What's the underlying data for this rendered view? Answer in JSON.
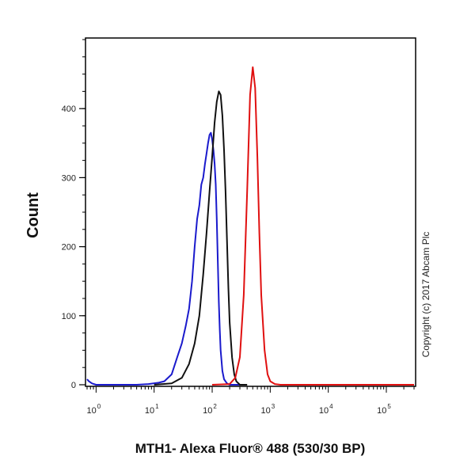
{
  "chart_data": {
    "type": "line",
    "title": "",
    "xlabel": "MTH1- Alexa Fluor® 488 (530/30 BP)",
    "ylabel": "Count",
    "x_scale": "log",
    "xlim": [
      0.7,
      300000
    ],
    "ylim": [
      0,
      500
    ],
    "y_ticks": [
      "0",
      "100",
      "200",
      "300",
      "400"
    ],
    "x_ticks": [
      {
        "base": "10",
        "exp": "0"
      },
      {
        "base": "10",
        "exp": "1"
      },
      {
        "base": "10",
        "exp": "2"
      },
      {
        "base": "10",
        "exp": "3"
      },
      {
        "base": "10",
        "exp": "4"
      },
      {
        "base": "10",
        "exp": "5"
      }
    ],
    "grid": false,
    "legend": "none",
    "series": [
      {
        "color": "#1a1acc",
        "x": [
          0.7,
          0.75,
          0.85,
          1,
          5,
          8,
          12,
          15,
          20,
          25,
          30,
          35,
          40,
          45,
          50,
          55,
          60,
          65,
          70,
          75,
          80,
          85,
          90,
          95,
          100,
          105,
          110,
          115,
          120,
          125,
          130,
          135,
          140,
          150,
          160,
          180,
          200,
          300
        ],
        "y": [
          8,
          5,
          2,
          0,
          0,
          1,
          3,
          5,
          15,
          40,
          60,
          85,
          110,
          150,
          200,
          240,
          260,
          290,
          300,
          320,
          335,
          350,
          362,
          365,
          355,
          340,
          320,
          290,
          240,
          180,
          120,
          80,
          50,
          20,
          8,
          2,
          0,
          0
        ]
      },
      {
        "color": "#111111",
        "x": [
          10,
          20,
          30,
          40,
          50,
          60,
          70,
          80,
          90,
          100,
          110,
          120,
          130,
          140,
          150,
          160,
          170,
          180,
          190,
          200,
          220,
          240,
          260,
          300,
          400
        ],
        "y": [
          0,
          2,
          10,
          30,
          60,
          100,
          160,
          220,
          280,
          330,
          380,
          410,
          425,
          420,
          390,
          340,
          280,
          210,
          140,
          90,
          40,
          15,
          5,
          0,
          0
        ]
      },
      {
        "color": "#e01010",
        "x": [
          100,
          200,
          250,
          300,
          350,
          400,
          450,
          500,
          550,
          600,
          650,
          700,
          800,
          900,
          1000,
          1200,
          1500,
          10000,
          100000,
          300000
        ],
        "y": [
          0,
          1,
          10,
          40,
          130,
          280,
          420,
          460,
          430,
          330,
          220,
          130,
          50,
          15,
          5,
          1,
          0,
          0,
          0,
          0
        ]
      }
    ]
  },
  "copyright": "Copyright (c) 2017 Abcam Plc"
}
